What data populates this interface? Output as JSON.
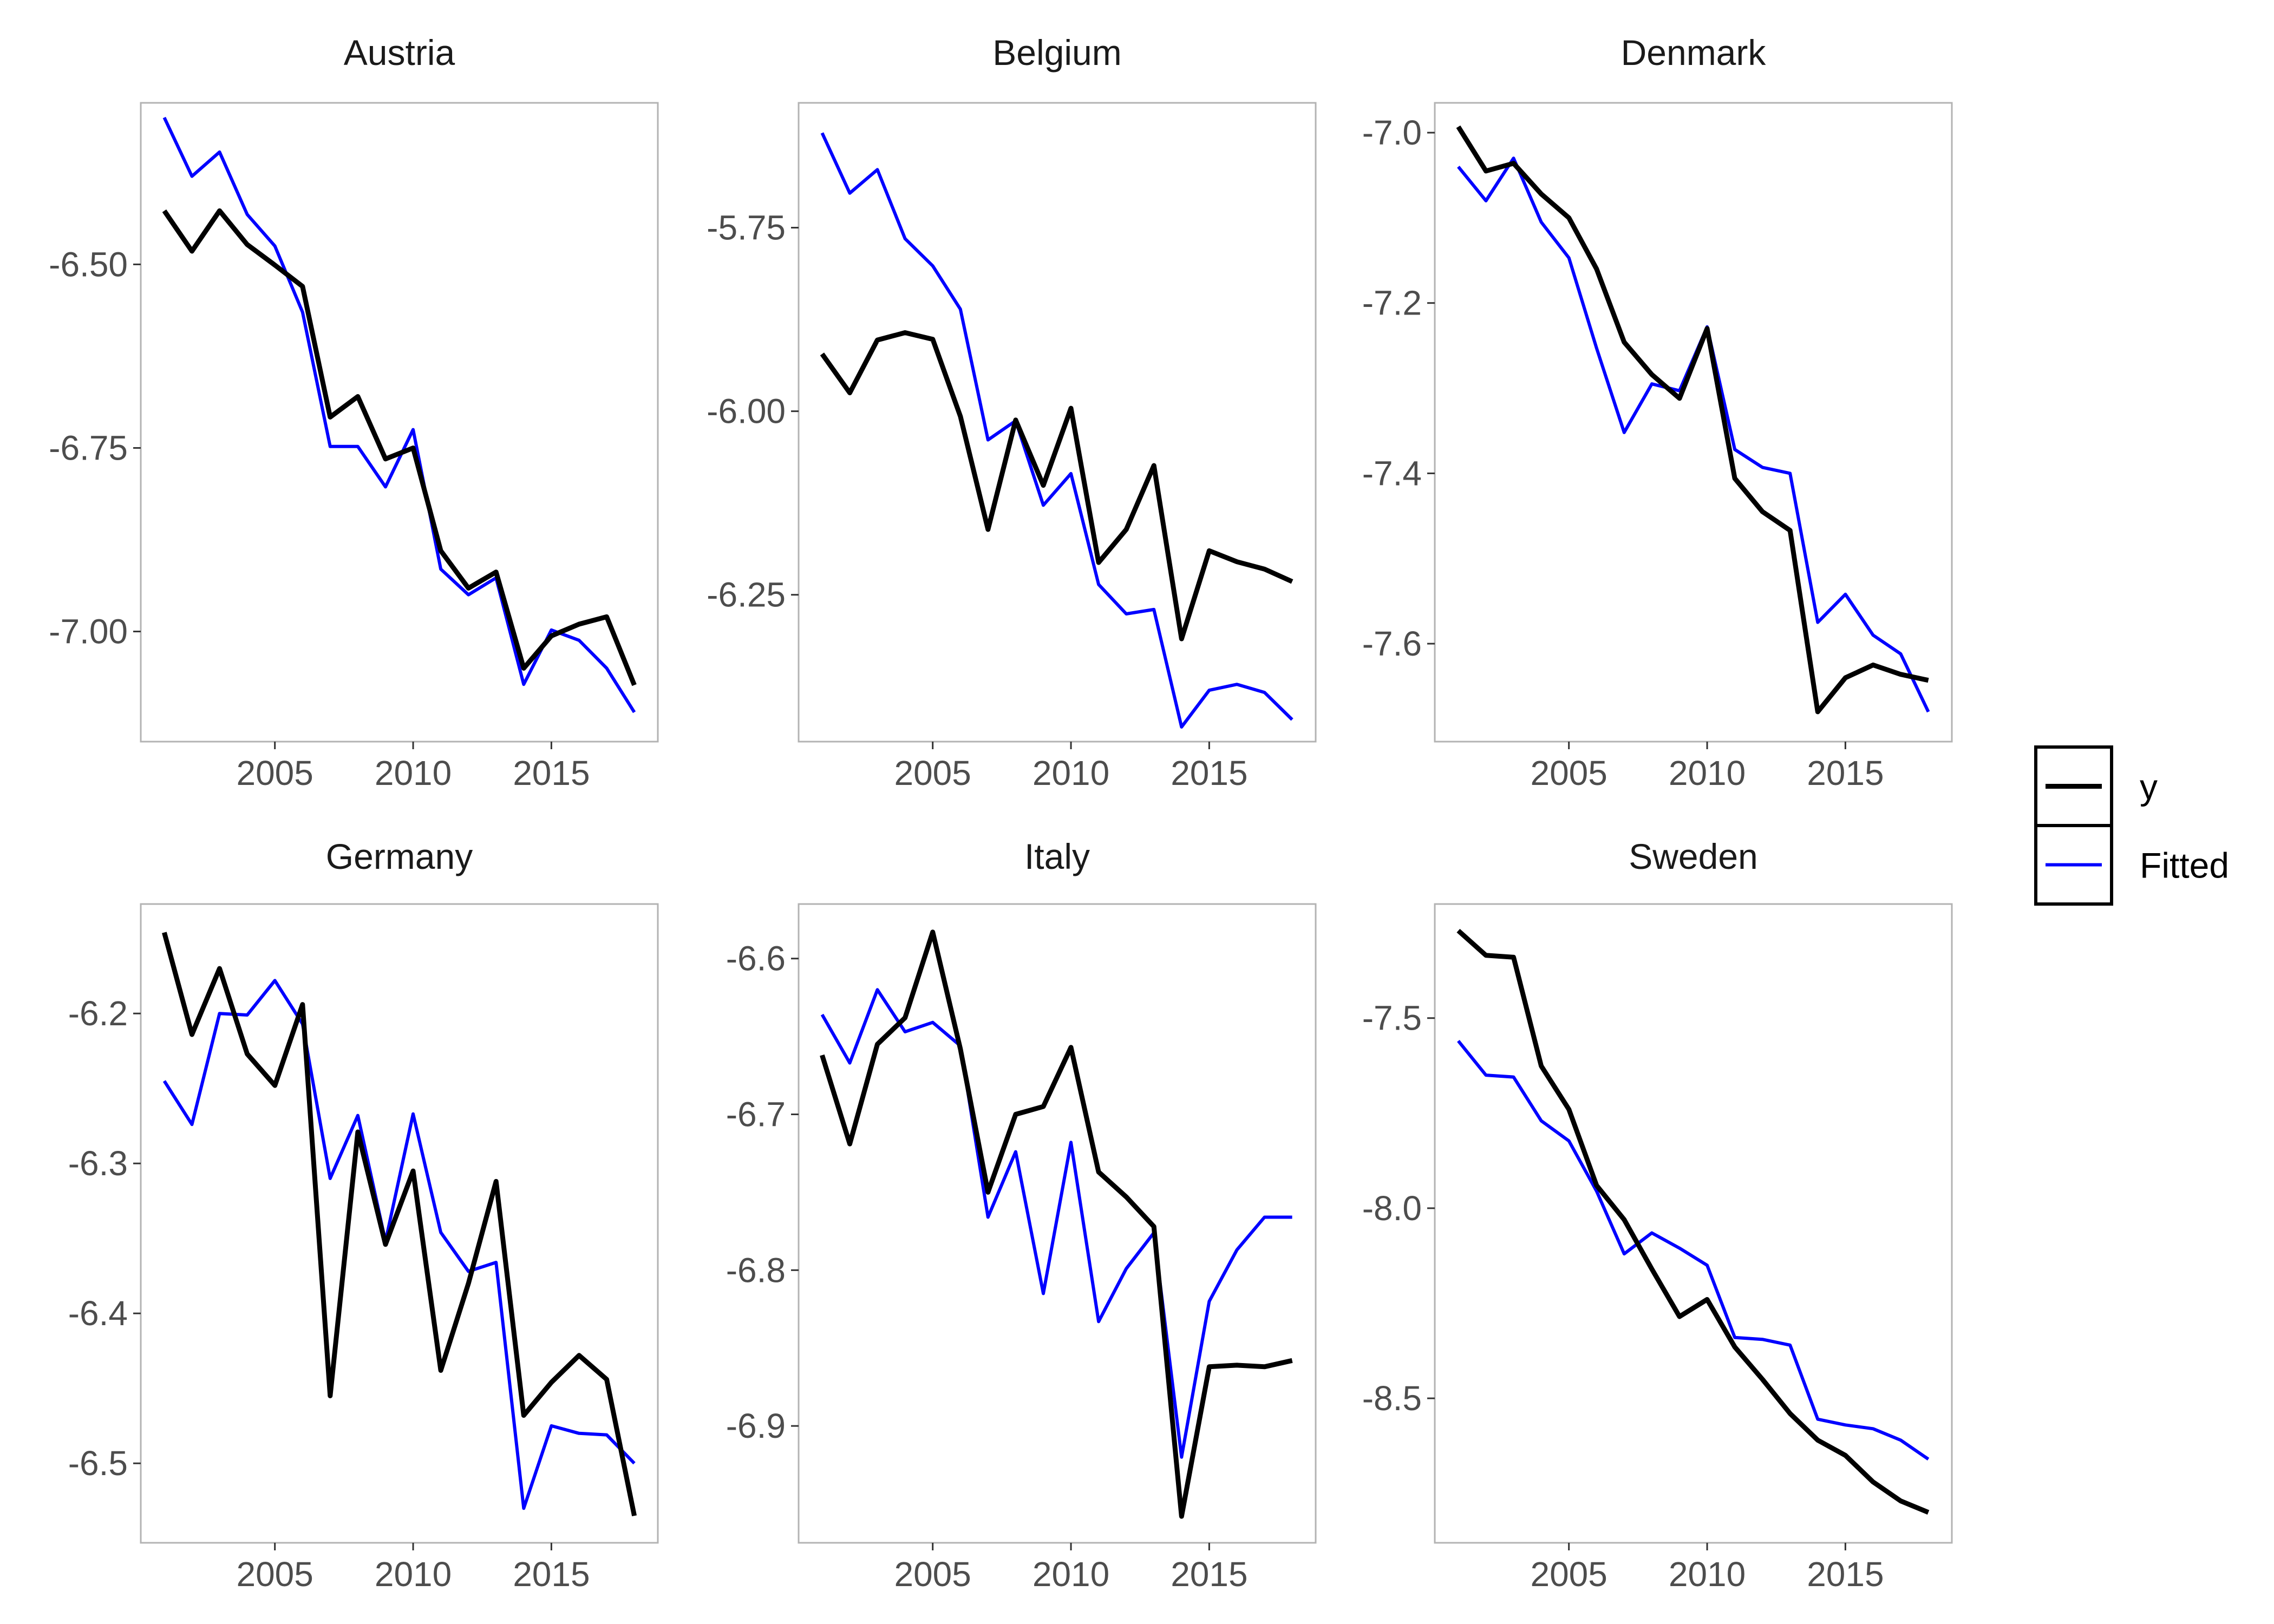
{
  "chart_data": {
    "type": "line",
    "facet_layout": "3 columns x 2 rows",
    "x": [
      2001,
      2002,
      2003,
      2004,
      2005,
      2006,
      2007,
      2008,
      2009,
      2010,
      2011,
      2012,
      2013,
      2014,
      2015,
      2016,
      2017,
      2018
    ],
    "x_ticks": [
      2005,
      2010,
      2015
    ],
    "legend": {
      "placement": "right",
      "entries": [
        {
          "label": "y",
          "color": "#000000"
        },
        {
          "label": "Fitted",
          "color": "#0000ff"
        }
      ]
    },
    "series_colors": {
      "y": "#000000",
      "Fitted": "#0000ff"
    },
    "grid": false,
    "panels": [
      {
        "title": "Austria",
        "ylim": [
          -7.15,
          -6.28
        ],
        "y_ticks": [
          -6.5,
          -6.75,
          -7.0
        ],
        "y_tick_labels": [
          "-6.50",
          "-6.75",
          "-7.00"
        ],
        "y": [
          -6.427,
          -6.482,
          -6.427,
          -6.473,
          -6.501,
          -6.53,
          -6.708,
          -6.68,
          -6.765,
          -6.75,
          -6.89,
          -6.941,
          -6.919,
          -7.05,
          -7.006,
          -6.99,
          -6.98,
          -7.073
        ],
        "fitted": [
          -6.3,
          -6.38,
          -6.347,
          -6.432,
          -6.475,
          -6.565,
          -6.748,
          -6.748,
          -6.803,
          -6.725,
          -6.915,
          -6.95,
          -6.927,
          -7.072,
          -6.998,
          -7.012,
          -7.05,
          -7.11
        ]
      },
      {
        "title": "Belgium",
        "ylim": [
          -6.45,
          -5.58
        ],
        "y_ticks": [
          -5.75,
          -6.0,
          -6.25
        ],
        "y_tick_labels": [
          "-5.75",
          "-6.00",
          "-6.25"
        ],
        "y": [
          -5.922,
          -5.975,
          -5.903,
          -5.893,
          -5.902,
          -6.007,
          -6.161,
          -6.012,
          -6.101,
          -5.996,
          -6.206,
          -6.161,
          -6.074,
          -6.31,
          -6.19,
          -6.205,
          -6.215,
          -6.232
        ],
        "fitted": [
          -5.621,
          -5.703,
          -5.671,
          -5.765,
          -5.802,
          -5.861,
          -6.039,
          -6.013,
          -6.128,
          -6.085,
          -6.236,
          -6.276,
          -6.27,
          -6.43,
          -6.38,
          -6.372,
          -6.383,
          -6.42
        ]
      },
      {
        "title": "Denmark",
        "ylim": [
          -7.715,
          -6.965
        ],
        "y_ticks": [
          -7.0,
          -7.2,
          -7.4,
          -7.6
        ],
        "y_tick_labels": [
          "-7.0",
          "-7.2",
          "-7.4",
          "-7.6"
        ],
        "y": [
          -6.993,
          -7.045,
          -7.036,
          -7.072,
          -7.1,
          -7.16,
          -7.246,
          -7.284,
          -7.312,
          -7.23,
          -7.406,
          -7.445,
          -7.467,
          -7.68,
          -7.64,
          -7.625,
          -7.636,
          -7.643
        ],
        "fitted": [
          -7.04,
          -7.08,
          -7.03,
          -7.105,
          -7.147,
          -7.253,
          -7.352,
          -7.295,
          -7.303,
          -7.228,
          -7.372,
          -7.393,
          -7.4,
          -7.575,
          -7.542,
          -7.59,
          -7.612,
          -7.68
        ]
      },
      {
        "title": "Germany",
        "ylim": [
          -6.553,
          -6.127
        ],
        "y_ticks": [
          -6.2,
          -6.3,
          -6.4,
          -6.5
        ],
        "y_tick_labels": [
          "-6.2",
          "-6.3",
          "-6.4",
          "-6.5"
        ],
        "y": [
          -6.146,
          -6.214,
          -6.17,
          -6.227,
          -6.248,
          -6.194,
          -6.455,
          -6.279,
          -6.354,
          -6.305,
          -6.438,
          -6.38,
          -6.312,
          -6.468,
          -6.446,
          -6.428,
          -6.444,
          -6.535
        ],
        "fitted": [
          -6.245,
          -6.274,
          -6.2,
          -6.201,
          -6.178,
          -6.207,
          -6.31,
          -6.268,
          -6.352,
          -6.267,
          -6.346,
          -6.372,
          -6.366,
          -6.53,
          -6.475,
          -6.48,
          -6.481,
          -6.5
        ]
      },
      {
        "title": "Italy",
        "ylim": [
          -6.975,
          -6.565
        ],
        "y_ticks": [
          -6.6,
          -6.7,
          -6.8,
          -6.9
        ],
        "y_tick_labels": [
          "-6.6",
          "-6.7",
          "-6.8",
          "-6.9"
        ],
        "y": [
          -6.662,
          -6.719,
          -6.655,
          -6.638,
          -6.583,
          -6.658,
          -6.75,
          -6.7,
          -6.695,
          -6.657,
          -6.737,
          -6.753,
          -6.772,
          -6.958,
          -6.862,
          -6.861,
          -6.862,
          -6.858
        ],
        "fitted": [
          -6.636,
          -6.667,
          -6.62,
          -6.647,
          -6.641,
          -6.656,
          -6.766,
          -6.724,
          -6.815,
          -6.718,
          -6.833,
          -6.799,
          -6.776,
          -6.92,
          -6.82,
          -6.787,
          -6.766,
          -6.766
        ]
      },
      {
        "title": "Sweden",
        "ylim": [
          -8.88,
          -7.2
        ],
        "y_ticks": [
          -7.5,
          -8.0,
          -8.5
        ],
        "y_tick_labels": [
          "-7.5",
          "-8.0",
          "-8.5"
        ],
        "y": [
          -7.27,
          -7.335,
          -7.34,
          -7.626,
          -7.74,
          -7.94,
          -8.03,
          -8.16,
          -8.285,
          -8.24,
          -8.365,
          -8.45,
          -8.54,
          -8.61,
          -8.65,
          -8.72,
          -8.77,
          -8.8
        ],
        "fitted": [
          -7.56,
          -7.65,
          -7.655,
          -7.77,
          -7.823,
          -7.955,
          -8.12,
          -8.065,
          -8.105,
          -8.15,
          -8.34,
          -8.345,
          -8.36,
          -8.555,
          -8.57,
          -8.58,
          -8.61,
          -8.66
        ]
      }
    ]
  }
}
